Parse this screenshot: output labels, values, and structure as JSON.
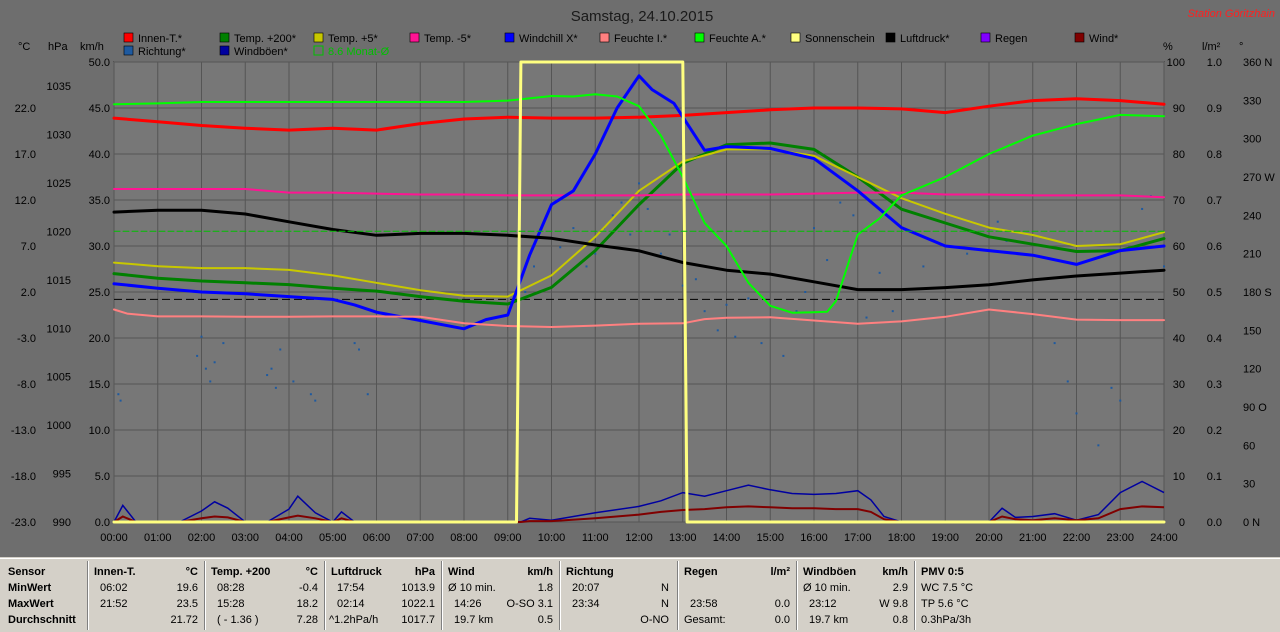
{
  "title": "Samstag, 24.10.2015",
  "station": "Station Göritzhain",
  "colors": {
    "background": "#6e6e6e",
    "plot": "#777777",
    "innen": "#ff0000",
    "temp200": "#008000",
    "temp5": "#c8c800",
    "tempm5": "#ff1493",
    "windchill": "#0000ff",
    "feuchteI": "#ff8080",
    "feuchteA": "#00ff00",
    "sonne": "#ffff80",
    "luftdruck": "#000000",
    "regen": "#8000ff",
    "wind": "#800000",
    "richtung": "#1e5aa0",
    "windboeen": "#0000a0",
    "monat": "#00c000"
  },
  "legend": {
    "row1": [
      {
        "label": "Innen-T.*",
        "color": "#ff0000"
      },
      {
        "label": "Temp. +200*",
        "color": "#008000"
      },
      {
        "label": "Temp. +5*",
        "color": "#c8c800"
      },
      {
        "label": "Temp. -5*",
        "color": "#ff1493"
      },
      {
        "label": "Windchill X*",
        "color": "#0000ff"
      },
      {
        "label": "Feuchte I.*",
        "color": "#ff8080"
      },
      {
        "label": "Feuchte A.*",
        "color": "#00ff00"
      },
      {
        "label": "Sonnenschein",
        "color": "#ffff80"
      },
      {
        "label": "Luftdruck*",
        "color": "#000000"
      },
      {
        "label": "Regen",
        "color": "#8000ff"
      },
      {
        "label": "Wind*",
        "color": "#800000"
      }
    ],
    "row2": [
      {
        "label": "Richtung*",
        "color": "#1e5aa0"
      },
      {
        "label": "Windböen*",
        "color": "#0000a0"
      },
      {
        "label": "8.6 Monat-Ø",
        "color": "#00c000"
      }
    ]
  },
  "axis_units": {
    "temp": "°C",
    "pressure": "hPa",
    "speed": "km/h",
    "percent": "%",
    "rain": "l/m²",
    "dir": "°"
  },
  "chart_data": {
    "type": "line",
    "title": "Samstag, 24.10.2015",
    "x_ticks": [
      "00:00",
      "01:00",
      "02:00",
      "03:00",
      "04:00",
      "05:00",
      "06:00",
      "07:00",
      "08:00",
      "09:00",
      "10:00",
      "11:00",
      "12:00",
      "13:00",
      "14:00",
      "15:00",
      "16:00",
      "17:00",
      "18:00",
      "19:00",
      "20:00",
      "21:00",
      "22:00",
      "23:00",
      "24:00"
    ],
    "y_axes": {
      "temp": {
        "unit": "°C",
        "ylim": [
          -23.0,
          27.0
        ],
        "ticks": [
          "22.0",
          "17.0",
          "12.0",
          "7.0",
          "2.0",
          "-3.0",
          "-8.0",
          "-13.0",
          "-18.0",
          "-23.0"
        ]
      },
      "pressure": {
        "unit": "hPa",
        "ylim": [
          990,
          1037.5
        ],
        "ticks": [
          "1035",
          "1030",
          "1025",
          "1020",
          "1015",
          "1010",
          "1005",
          "1000",
          "995",
          "990"
        ]
      },
      "speed": {
        "unit": "km/h",
        "ylim": [
          0,
          50
        ],
        "ticks": [
          "50.0",
          "45.0",
          "40.0",
          "35.0",
          "30.0",
          "25.0",
          "20.0",
          "15.0",
          "10.0",
          "5.0",
          "0.0"
        ]
      },
      "percent": {
        "unit": "%",
        "ylim": [
          0,
          100
        ],
        "ticks": [
          "100",
          "90",
          "80",
          "70",
          "60",
          "50",
          "40",
          "30",
          "20",
          "10",
          "0"
        ]
      },
      "rain": {
        "unit": "l/m²",
        "ylim": [
          0,
          1
        ],
        "ticks": [
          "1.0",
          "0.9",
          "0.8",
          "0.7",
          "0.6",
          "0.5",
          "0.4",
          "0.3",
          "0.2",
          "0.1",
          "0.0"
        ]
      },
      "dir": {
        "unit": "°",
        "ylim": [
          0,
          360
        ],
        "ticks": [
          "360 N",
          "330",
          "300",
          "270 W",
          "240",
          "210",
          "180 S",
          "150",
          "120",
          "90 O",
          "60",
          "30",
          "0 N"
        ]
      }
    },
    "grid": true,
    "series": [
      {
        "name": "Innen-T.*",
        "axis": "temp",
        "color": "#ff0000",
        "width": 3,
        "x": [
          0,
          1,
          2,
          3,
          4,
          5,
          6,
          7,
          8,
          9,
          10,
          11,
          12,
          13,
          14,
          15,
          16,
          17,
          18,
          19,
          20,
          21,
          22,
          23,
          24
        ],
        "y": [
          20.9,
          20.5,
          20.1,
          19.8,
          19.6,
          19.8,
          19.6,
          20.3,
          20.8,
          21.0,
          20.9,
          20.9,
          21.0,
          21.2,
          21.5,
          21.8,
          22.0,
          22.0,
          21.9,
          21.5,
          22.2,
          22.8,
          23.0,
          22.8,
          22.4
        ]
      },
      {
        "name": "Temp. +200*",
        "axis": "temp",
        "color": "#008000",
        "width": 3,
        "x": [
          0,
          1,
          2,
          3,
          4,
          5,
          6,
          7,
          8,
          9,
          10,
          11,
          12,
          13,
          14,
          15,
          16,
          17,
          18,
          19,
          20,
          21,
          22,
          23,
          24
        ],
        "y": [
          4.0,
          3.5,
          3.2,
          3.0,
          2.8,
          2.4,
          2.1,
          1.5,
          1.0,
          0.7,
          2.5,
          6.5,
          11.5,
          16.0,
          18.0,
          18.2,
          17.5,
          14.5,
          11.0,
          9.5,
          8.0,
          7.2,
          6.4,
          6.5,
          7.8
        ]
      },
      {
        "name": "Temp. +5*",
        "axis": "temp",
        "color": "#c8c800",
        "width": 2,
        "x": [
          0,
          1,
          2,
          3,
          4,
          5,
          6,
          7,
          8,
          9,
          10,
          11,
          12,
          13,
          14,
          15,
          16,
          17,
          18,
          19,
          20,
          21,
          22,
          23,
          24
        ],
        "y": [
          5.2,
          4.8,
          4.6,
          4.6,
          4.4,
          3.8,
          3.0,
          2.2,
          1.6,
          1.5,
          3.8,
          8.0,
          13.0,
          16.2,
          17.5,
          17.5,
          16.8,
          14.5,
          12.2,
          10.5,
          9.0,
          8.2,
          7.0,
          7.2,
          8.5
        ]
      },
      {
        "name": "Temp. -5*",
        "axis": "temp",
        "color": "#ff1493",
        "width": 2,
        "x": [
          0,
          1,
          2,
          3,
          4,
          5,
          6,
          7,
          8,
          9,
          10,
          11,
          12,
          13,
          14,
          15,
          16,
          17,
          18,
          19,
          20,
          21,
          22,
          23,
          24
        ],
        "y": [
          13.2,
          13.2,
          13.2,
          13.2,
          12.8,
          12.8,
          12.7,
          12.6,
          12.6,
          12.5,
          12.5,
          12.5,
          12.5,
          12.6,
          12.6,
          12.6,
          12.7,
          12.8,
          12.8,
          12.6,
          12.6,
          12.5,
          12.5,
          12.5,
          12.3
        ]
      },
      {
        "name": "Windchill X*",
        "axis": "temp",
        "color": "#0000ff",
        "width": 3,
        "x": [
          0,
          1,
          2,
          3,
          4,
          5,
          5.5,
          6,
          7,
          8,
          8.5,
          9,
          9.5,
          10,
          10.5,
          11,
          11.5,
          12,
          12.3,
          12.8,
          13.5,
          14,
          15,
          16,
          17,
          18,
          19,
          20,
          21,
          22,
          23,
          24
        ],
        "y": [
          2.9,
          2.4,
          2.0,
          1.8,
          1.5,
          1.2,
          0.6,
          -0.2,
          -1.1,
          -2.0,
          -1.0,
          -0.5,
          6.0,
          11.5,
          13.0,
          17.0,
          22.0,
          25.5,
          24.0,
          22.5,
          17.4,
          17.8,
          17.6,
          16.5,
          13.0,
          9.0,
          7.0,
          6.5,
          6.0,
          5.0,
          6.5,
          7.0
        ]
      },
      {
        "name": "Luftdruck*",
        "axis": "pressure",
        "color": "#000000",
        "width": 3,
        "x": [
          0,
          1,
          2,
          3,
          4,
          5,
          6,
          7,
          8,
          9,
          10,
          11,
          12,
          13,
          14,
          15,
          16,
          17,
          18,
          19,
          20,
          21,
          22,
          23,
          24
        ],
        "y": [
          1022.0,
          1022.2,
          1022.2,
          1021.8,
          1021.0,
          1020.2,
          1019.6,
          1019.8,
          1019.8,
          1019.6,
          1019.3,
          1018.6,
          1018.0,
          1016.8,
          1016.0,
          1015.6,
          1014.8,
          1014.0,
          1014.0,
          1014.2,
          1014.5,
          1015.0,
          1015.4,
          1015.7,
          1016.0
        ]
      },
      {
        "name": "Feuchte I.*",
        "axis": "percent",
        "color": "#ff8080",
        "width": 2,
        "x": [
          0,
          0.3,
          1,
          2,
          3,
          4,
          5,
          6,
          7,
          8,
          9,
          10,
          11,
          12,
          13,
          13.5,
          14,
          15,
          16,
          17,
          18,
          19,
          20,
          21,
          22,
          23,
          24
        ],
        "y": [
          46.2,
          45.3,
          44.7,
          44.7,
          44.6,
          44.6,
          44.7,
          44.7,
          44.6,
          43.2,
          42.6,
          42.4,
          42.7,
          43.1,
          43.2,
          44.1,
          44.4,
          44.5,
          43.8,
          43.1,
          43.6,
          44.6,
          46.2,
          45.2,
          44.0,
          43.9,
          43.9
        ]
      },
      {
        "name": "Feuchte A.*",
        "axis": "percent",
        "color": "#00ff00",
        "width": 2,
        "x": [
          0,
          1,
          2,
          3,
          4,
          5,
          6,
          7,
          8,
          9,
          10,
          10.5,
          11,
          11.5,
          12,
          12.5,
          13,
          13.5,
          14,
          14.5,
          15,
          15.5,
          16,
          16.3,
          16.5,
          17,
          17.5,
          18,
          19,
          20,
          21,
          22,
          23,
          24
        ],
        "y": [
          90.8,
          91.0,
          91.3,
          91.3,
          91.3,
          91.3,
          91.3,
          91.3,
          91.3,
          91.6,
          92.6,
          92.5,
          93.0,
          92.5,
          90.4,
          84.0,
          75.0,
          65.0,
          60.0,
          52.0,
          47.0,
          45.5,
          45.6,
          45.7,
          48.0,
          62.5,
          66.0,
          71.0,
          75.0,
          80.0,
          84.0,
          86.5,
          88.5,
          88.2
        ]
      },
      {
        "name": "Sonnenschein",
        "axis": "percent",
        "color": "#ffff80",
        "width": 3,
        "x": [
          0,
          9.2,
          9.3,
          9.4,
          12.9,
          13.0,
          13.1,
          24
        ],
        "y": [
          0,
          0,
          100,
          100,
          100,
          100,
          0,
          0
        ]
      },
      {
        "name": "8.6 Monat-Ø",
        "axis": "temp",
        "color": "#00c000",
        "width": 1,
        "dashed": true,
        "x": [
          0,
          24
        ],
        "y": [
          8.6,
          8.6
        ]
      }
    ],
    "reference_lines": [
      {
        "axis": "percent",
        "y": 48.4,
        "color": "#000000",
        "dashed": true
      }
    ],
    "bars": [
      {
        "name": "Wind*",
        "axis": "speed",
        "color": "#800000"
      },
      {
        "name": "Windböen*",
        "axis": "speed",
        "color": "#0000a0"
      }
    ],
    "gust_profile": {
      "x": [
        0,
        0.2,
        0.5,
        1.5,
        2,
        2.3,
        2.6,
        3,
        3.5,
        4,
        4.2,
        4.6,
        5,
        5.2,
        5.5,
        6,
        9.3,
        9.5,
        10,
        11,
        12,
        12.5,
        13,
        13.5,
        14,
        14.5,
        15,
        15.5,
        16,
        16.5,
        17,
        17.3,
        17.6,
        18,
        20,
        20.3,
        20.6,
        21,
        21.5,
        22,
        22.5,
        23,
        23.5,
        24
      ],
      "gust": [
        0,
        1.8,
        0,
        0,
        1.2,
        2.2,
        1.5,
        0,
        0,
        1.4,
        2.8,
        1.0,
        0,
        1.1,
        0,
        0,
        0,
        0.4,
        0.2,
        1.0,
        1.7,
        2.3,
        3.2,
        2.8,
        3.4,
        4.0,
        3.5,
        3.1,
        3.0,
        3.1,
        3.4,
        2.4,
        0.6,
        0,
        0,
        1.5,
        0.5,
        0.6,
        0.9,
        0.2,
        0.8,
        3.2,
        4.4,
        3.2
      ],
      "wind": [
        0,
        0.6,
        0,
        0,
        0.4,
        0.6,
        0.5,
        0,
        0,
        0.5,
        0.7,
        0.4,
        0,
        0.4,
        0,
        0,
        0,
        0.1,
        0.1,
        0.4,
        0.8,
        1.1,
        1.3,
        1.4,
        1.6,
        1.7,
        1.6,
        1.5,
        1.5,
        1.4,
        1.4,
        1.1,
        0.3,
        0,
        0,
        0.6,
        0.3,
        0.2,
        0.4,
        0.2,
        0.4,
        1.4,
        1.7,
        1.6
      ]
    },
    "direction_points": {
      "axis": "dir",
      "color": "#1e5aa0",
      "x": [
        0.1,
        0.15,
        1.9,
        2.0,
        2.1,
        2.2,
        2.3,
        2.5,
        3.5,
        3.6,
        3.7,
        3.8,
        4.1,
        4.5,
        4.6,
        5.5,
        5.6,
        5.8,
        9.4,
        9.6,
        10.2,
        10.5,
        10.8,
        11.0,
        11.2,
        11.4,
        11.6,
        11.8,
        12.0,
        12.2,
        12.5,
        12.7,
        13.0,
        13.3,
        13.5,
        13.8,
        14.0,
        14.2,
        14.5,
        14.8,
        15.0,
        15.3,
        15.6,
        15.8,
        16.0,
        16.3,
        16.6,
        16.9,
        17.2,
        17.5,
        17.8,
        18.5,
        19.5,
        20.2,
        20.4,
        21.5,
        21.8,
        22.0,
        22.5,
        22.8,
        23.0,
        23.2,
        23.5,
        23.7,
        24
      ],
      "y": [
        100,
        95,
        130,
        145,
        120,
        110,
        125,
        140,
        115,
        120,
        105,
        135,
        110,
        100,
        95,
        140,
        135,
        100,
        180,
        200,
        215,
        230,
        200,
        210,
        230,
        240,
        250,
        225,
        265,
        245,
        210,
        225,
        185,
        190,
        165,
        150,
        170,
        145,
        175,
        140,
        160,
        130,
        165,
        180,
        230,
        205,
        250,
        240,
        160,
        195,
        165,
        200,
        210,
        235,
        220,
        140,
        110,
        85,
        60,
        105,
        95,
        215,
        245,
        255,
        200
      ]
    },
    "x_range_hours": [
      0,
      24
    ]
  },
  "stats": {
    "sensor": {
      "title": "Sensor",
      "rows": [
        "MinWert",
        "MaxWert",
        "Durchschnitt"
      ]
    },
    "innen": {
      "title": "Innen-T.",
      "unit": "°C",
      "rows": [
        [
          "06:02",
          "19.6"
        ],
        [
          "21:52",
          "23.5"
        ],
        [
          "",
          "21.72"
        ]
      ]
    },
    "temp200": {
      "title": "Temp. +200",
      "unit": "°C",
      "rows": [
        [
          "08:28",
          "-0.4"
        ],
        [
          "15:28",
          "18.2"
        ],
        [
          "( - 1.36 )",
          "7.28"
        ]
      ]
    },
    "luftdruck": {
      "title": "Luftdruck",
      "unit": "hPa",
      "rows": [
        [
          "17:54",
          "1013.9"
        ],
        [
          "02:14",
          "1022.1"
        ],
        [
          "^1.2hPa/h",
          "1017.7"
        ]
      ]
    },
    "wind": {
      "title": "Wind",
      "unit": "km/h",
      "rows": [
        [
          "Ø 10 min.",
          "1.8"
        ],
        [
          "14:26",
          "O-SO 3.1"
        ],
        [
          "19.7 km",
          "0.5"
        ]
      ]
    },
    "richtung": {
      "title": "Richtung",
      "unit": "",
      "rows": [
        [
          "20:07",
          "N"
        ],
        [
          "23:34",
          "N"
        ],
        [
          "",
          "O-NO"
        ]
      ]
    },
    "regen": {
      "title": "Regen",
      "unit": "l/m²",
      "rows": [
        [
          "",
          ""
        ],
        [
          "23:58",
          "0.0"
        ],
        [
          "Gesamt:",
          "0.0"
        ]
      ]
    },
    "windboeen": {
      "title": "Windböen",
      "unit": "km/h",
      "rows": [
        [
          "Ø 10 min.",
          "2.9"
        ],
        [
          "23:12",
          "W 9.8"
        ],
        [
          "19.7 km",
          "0.8"
        ]
      ]
    },
    "pmv": {
      "title": "PMV 0:5",
      "rows": [
        "WC 7.5 °C",
        "TP 5.6 °C",
        "0.3hPa/3h"
      ]
    }
  }
}
